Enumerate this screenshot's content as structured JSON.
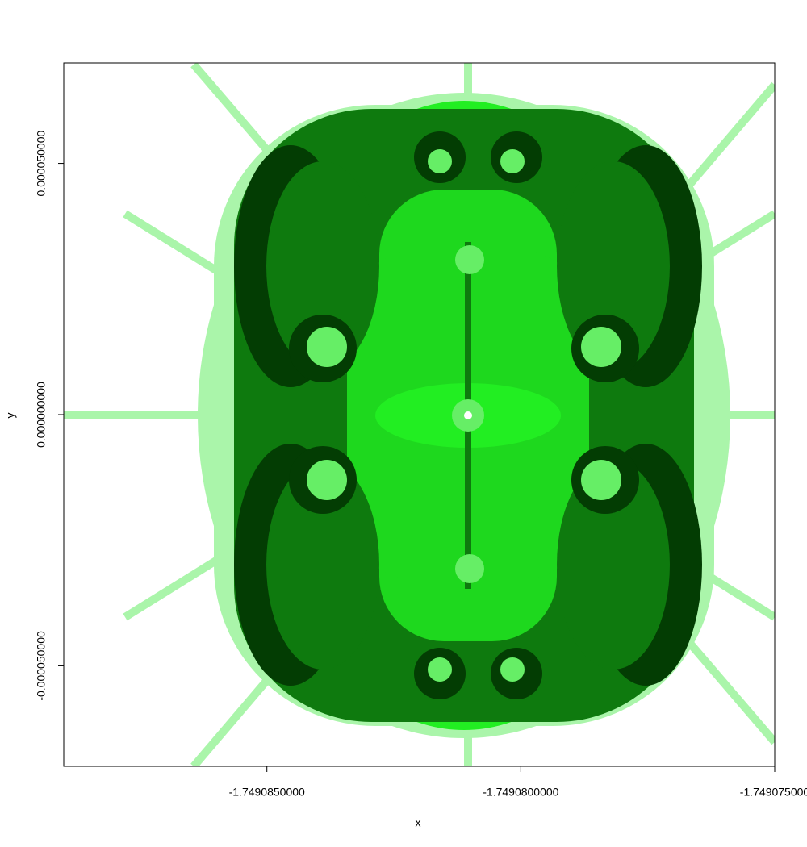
{
  "chart_data": {
    "type": "image",
    "x_label": "x",
    "y_label": "y",
    "xlim": [
      -1.749089,
      -1.749075
    ],
    "ylim": [
      -7e-05,
      7e-05
    ],
    "xticks": [
      {
        "value": -1.749085,
        "label": "-1.7490850000"
      },
      {
        "value": -1.74908,
        "label": "-1.7490800000"
      },
      {
        "value": -1.749075,
        "label": "-1.749075000"
      }
    ],
    "yticks": [
      {
        "value": -5e-05,
        "label": "-0.000050000"
      },
      {
        "value": 0,
        "label": "0.000000000"
      },
      {
        "value": 5e-05,
        "label": "0.000050000"
      }
    ]
  }
}
